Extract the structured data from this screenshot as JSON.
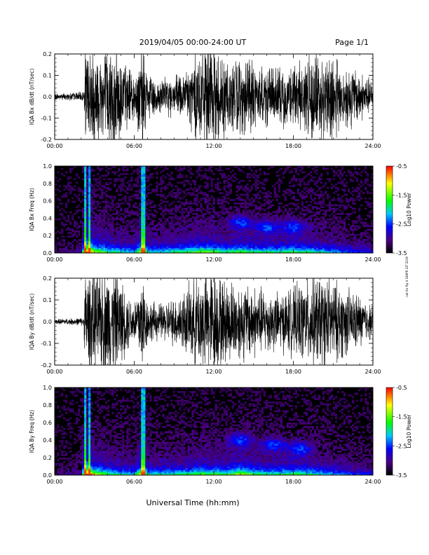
{
  "header": {
    "date_range": "2019/04/05   00:00-24:00 UT",
    "page": "Page 1/1"
  },
  "side_note": "not for ftp 4 16APR GIT 2019",
  "x_axis_title": "Universal Time (hh:mm)",
  "colorbar_title": "Log10 Power",
  "chart_data": [
    {
      "type": "line",
      "ylabel": "IQA Bx dB/dt (nT/sec)",
      "xlim": [
        0,
        24
      ],
      "ylim": [
        -0.2,
        0.2
      ],
      "x_ticks": [
        "00:00",
        "06:00",
        "12:00",
        "18:00",
        "24:00"
      ],
      "y_ticks": [
        "-0.2",
        "-0.1",
        "0.0",
        "0.1",
        "0.2"
      ],
      "series": [
        {
          "envelope": {
            "x_hours": [
              0,
              1,
              2,
              2.2,
              2.3,
              3,
              3.5,
              4,
              4.5,
              5,
              5.5,
              6,
              6.6,
              7,
              8,
              9,
              10,
              10.8,
              11.5,
              12,
              12.5,
              13,
              14,
              15,
              16,
              17,
              18,
              19,
              20,
              21,
              22,
              23,
              24
            ],
            "amplitude": [
              0.012,
              0.015,
              0.018,
              0.02,
              0.2,
              0.2,
              0.2,
              0.2,
              0.2,
              0.18,
              0.12,
              0.09,
              0.2,
              0.09,
              0.07,
              0.08,
              0.11,
              0.2,
              0.2,
              0.2,
              0.18,
              0.15,
              0.15,
              0.14,
              0.12,
              0.11,
              0.13,
              0.15,
              0.18,
              0.16,
              0.13,
              0.1,
              0.06
            ]
          }
        }
      ]
    },
    {
      "type": "heatmap",
      "ylabel": "IQA Bx Freq (Hz)",
      "xlim": [
        0,
        24
      ],
      "ylim": [
        0,
        1.0
      ],
      "x_ticks": [
        "00:00",
        "06:00",
        "12:00",
        "18:00",
        "24:00"
      ],
      "y_ticks": [
        "0.0",
        "0.2",
        "0.4",
        "0.6",
        "0.8",
        "1.0"
      ],
      "colorbar": {
        "label": "Log10 Power",
        "range": [
          -3.5,
          -0.5
        ],
        "ticks": [
          "-0.5",
          "-1.5",
          "-2.5",
          "-3.5"
        ]
      },
      "activity": {
        "x_hours": [
          0,
          2,
          2.3,
          2.6,
          3,
          4,
          5,
          6,
          6.6,
          7,
          8,
          10,
          11,
          12,
          13,
          14,
          15,
          16,
          17,
          18,
          19,
          20,
          22,
          24
        ],
        "level": [
          0.05,
          0.15,
          1.0,
          1.0,
          0.7,
          0.55,
          0.45,
          0.4,
          0.85,
          0.45,
          0.45,
          0.55,
          0.65,
          0.6,
          0.5,
          0.6,
          0.5,
          0.5,
          0.5,
          0.55,
          0.5,
          0.45,
          0.3,
          0.2
        ]
      },
      "highlights": [
        {
          "name": "broadband spike",
          "x_hours": 2.3
        },
        {
          "name": "broadband spike",
          "x_hours": 2.6
        },
        {
          "name": "broadband spike",
          "x_hours": 6.6
        },
        {
          "name": "broadband spike",
          "x_hours": 6.75
        },
        {
          "name": "blob 0.35Hz",
          "x_hours": 14.0,
          "y_hz": 0.35
        },
        {
          "name": "blob 0.30Hz",
          "x_hours": 16.0,
          "y_hz": 0.3
        },
        {
          "name": "blob 0.30Hz",
          "x_hours": 18.0,
          "y_hz": 0.3
        }
      ]
    },
    {
      "type": "line",
      "ylabel": "IQA By dB/dt (nT/sec)",
      "xlim": [
        0,
        24
      ],
      "ylim": [
        -0.2,
        0.2
      ],
      "x_ticks": [
        "00:00",
        "06:00",
        "12:00",
        "18:00",
        "24:00"
      ],
      "y_ticks": [
        "-0.2",
        "-0.1",
        "0.0",
        "0.1",
        "0.2"
      ],
      "series": [
        {
          "envelope": {
            "x_hours": [
              0,
              1,
              2,
              2.2,
              2.3,
              3,
              3.5,
              4,
              4.5,
              5,
              5.5,
              6,
              6.6,
              7,
              8,
              9,
              10,
              10.8,
              11.5,
              12,
              12.5,
              13,
              14,
              15,
              16,
              17,
              18,
              19,
              20,
              21,
              22,
              23,
              24
            ],
            "amplitude": [
              0.01,
              0.012,
              0.015,
              0.02,
              0.2,
              0.2,
              0.2,
              0.2,
              0.2,
              0.16,
              0.11,
              0.08,
              0.2,
              0.08,
              0.07,
              0.09,
              0.13,
              0.18,
              0.2,
              0.2,
              0.17,
              0.16,
              0.15,
              0.14,
              0.12,
              0.11,
              0.13,
              0.16,
              0.18,
              0.16,
              0.13,
              0.1,
              0.06
            ]
          }
        }
      ]
    },
    {
      "type": "heatmap",
      "ylabel": "IQA By Freq (Hz)",
      "xlim": [
        0,
        24
      ],
      "ylim": [
        0,
        1.0
      ],
      "x_ticks": [
        "00:00",
        "06:00",
        "12:00",
        "18:00",
        "24:00"
      ],
      "y_ticks": [
        "0.0",
        "0.2",
        "0.4",
        "0.6",
        "0.8",
        "1.0"
      ],
      "colorbar": {
        "label": "Log10 Power",
        "range": [
          -3.5,
          -0.5
        ],
        "ticks": [
          "-0.5",
          "-1.5",
          "-2.5",
          "-3.5"
        ]
      },
      "activity": {
        "x_hours": [
          0,
          2,
          2.3,
          2.6,
          3,
          4,
          5,
          6,
          6.6,
          7,
          8,
          10,
          11,
          12,
          13,
          14,
          15,
          16,
          17,
          18,
          19,
          20,
          22,
          24
        ],
        "level": [
          0.05,
          0.15,
          1.0,
          1.0,
          0.7,
          0.55,
          0.45,
          0.4,
          0.85,
          0.45,
          0.45,
          0.5,
          0.6,
          0.6,
          0.55,
          0.7,
          0.55,
          0.5,
          0.5,
          0.55,
          0.5,
          0.45,
          0.3,
          0.2
        ]
      },
      "highlights": [
        {
          "name": "broadband spike",
          "x_hours": 2.3
        },
        {
          "name": "broadband spike",
          "x_hours": 2.6
        },
        {
          "name": "broadband spike",
          "x_hours": 6.6
        },
        {
          "name": "broadband spike",
          "x_hours": 6.75
        },
        {
          "name": "blob 0.40Hz",
          "x_hours": 14.0,
          "y_hz": 0.4
        },
        {
          "name": "blob 0.35Hz",
          "x_hours": 16.5,
          "y_hz": 0.35
        },
        {
          "name": "blob 0.30Hz",
          "x_hours": 18.5,
          "y_hz": 0.3
        }
      ]
    }
  ]
}
